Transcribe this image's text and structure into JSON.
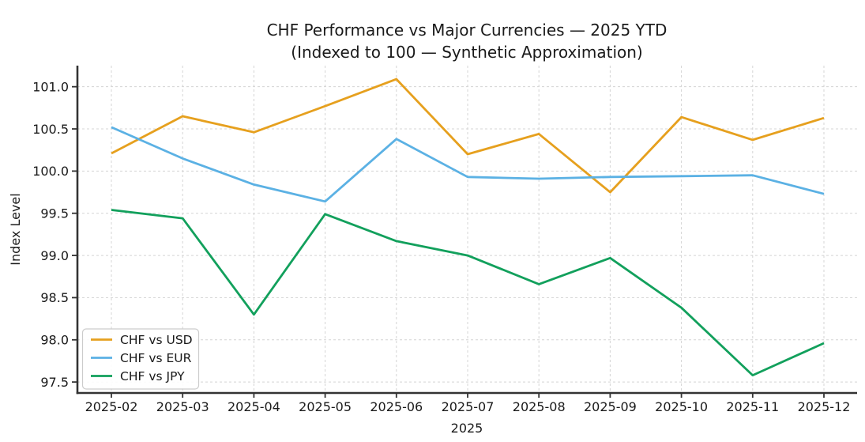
{
  "chart_data": {
    "type": "line",
    "title": "CHF Performance vs Major Currencies — 2025 YTD",
    "subtitle": "(Indexed to 100 — Synthetic Approximation)",
    "xlabel": "2025",
    "ylabel": "Index Level",
    "categories": [
      "2025-02",
      "2025-03",
      "2025-04",
      "2025-05",
      "2025-06",
      "2025-07",
      "2025-08",
      "2025-09",
      "2025-10",
      "2025-11",
      "2025-12"
    ],
    "series": [
      {
        "name": "CHF vs USD",
        "color": "#E6A01E",
        "values": [
          100.21,
          100.65,
          100.46,
          100.77,
          101.09,
          100.2,
          100.44,
          99.75,
          100.64,
          100.37,
          100.63
        ]
      },
      {
        "name": "CHF vs EUR",
        "color": "#5BB1E4",
        "values": [
          100.52,
          100.15,
          99.84,
          99.64,
          100.38,
          99.93,
          99.91,
          99.93,
          99.94,
          99.95,
          99.73
        ]
      },
      {
        "name": "CHF vs JPY",
        "color": "#12A05C",
        "values": [
          99.54,
          99.44,
          98.3,
          99.49,
          99.17,
          99.0,
          98.66,
          98.97,
          98.38,
          97.58,
          97.96
        ]
      }
    ],
    "yticks": [
      97.5,
      98.0,
      98.5,
      99.0,
      99.5,
      100.0,
      100.5,
      101.0
    ],
    "ylim": [
      97.37,
      101.25
    ],
    "grid": true,
    "legend_position": "lower-left"
  },
  "colors": {
    "text": "#1a1a1a",
    "grid": "#d4d4d4",
    "spine": "#333333",
    "legend_border": "#cccccc",
    "legend_fill": "#ffffff"
  }
}
